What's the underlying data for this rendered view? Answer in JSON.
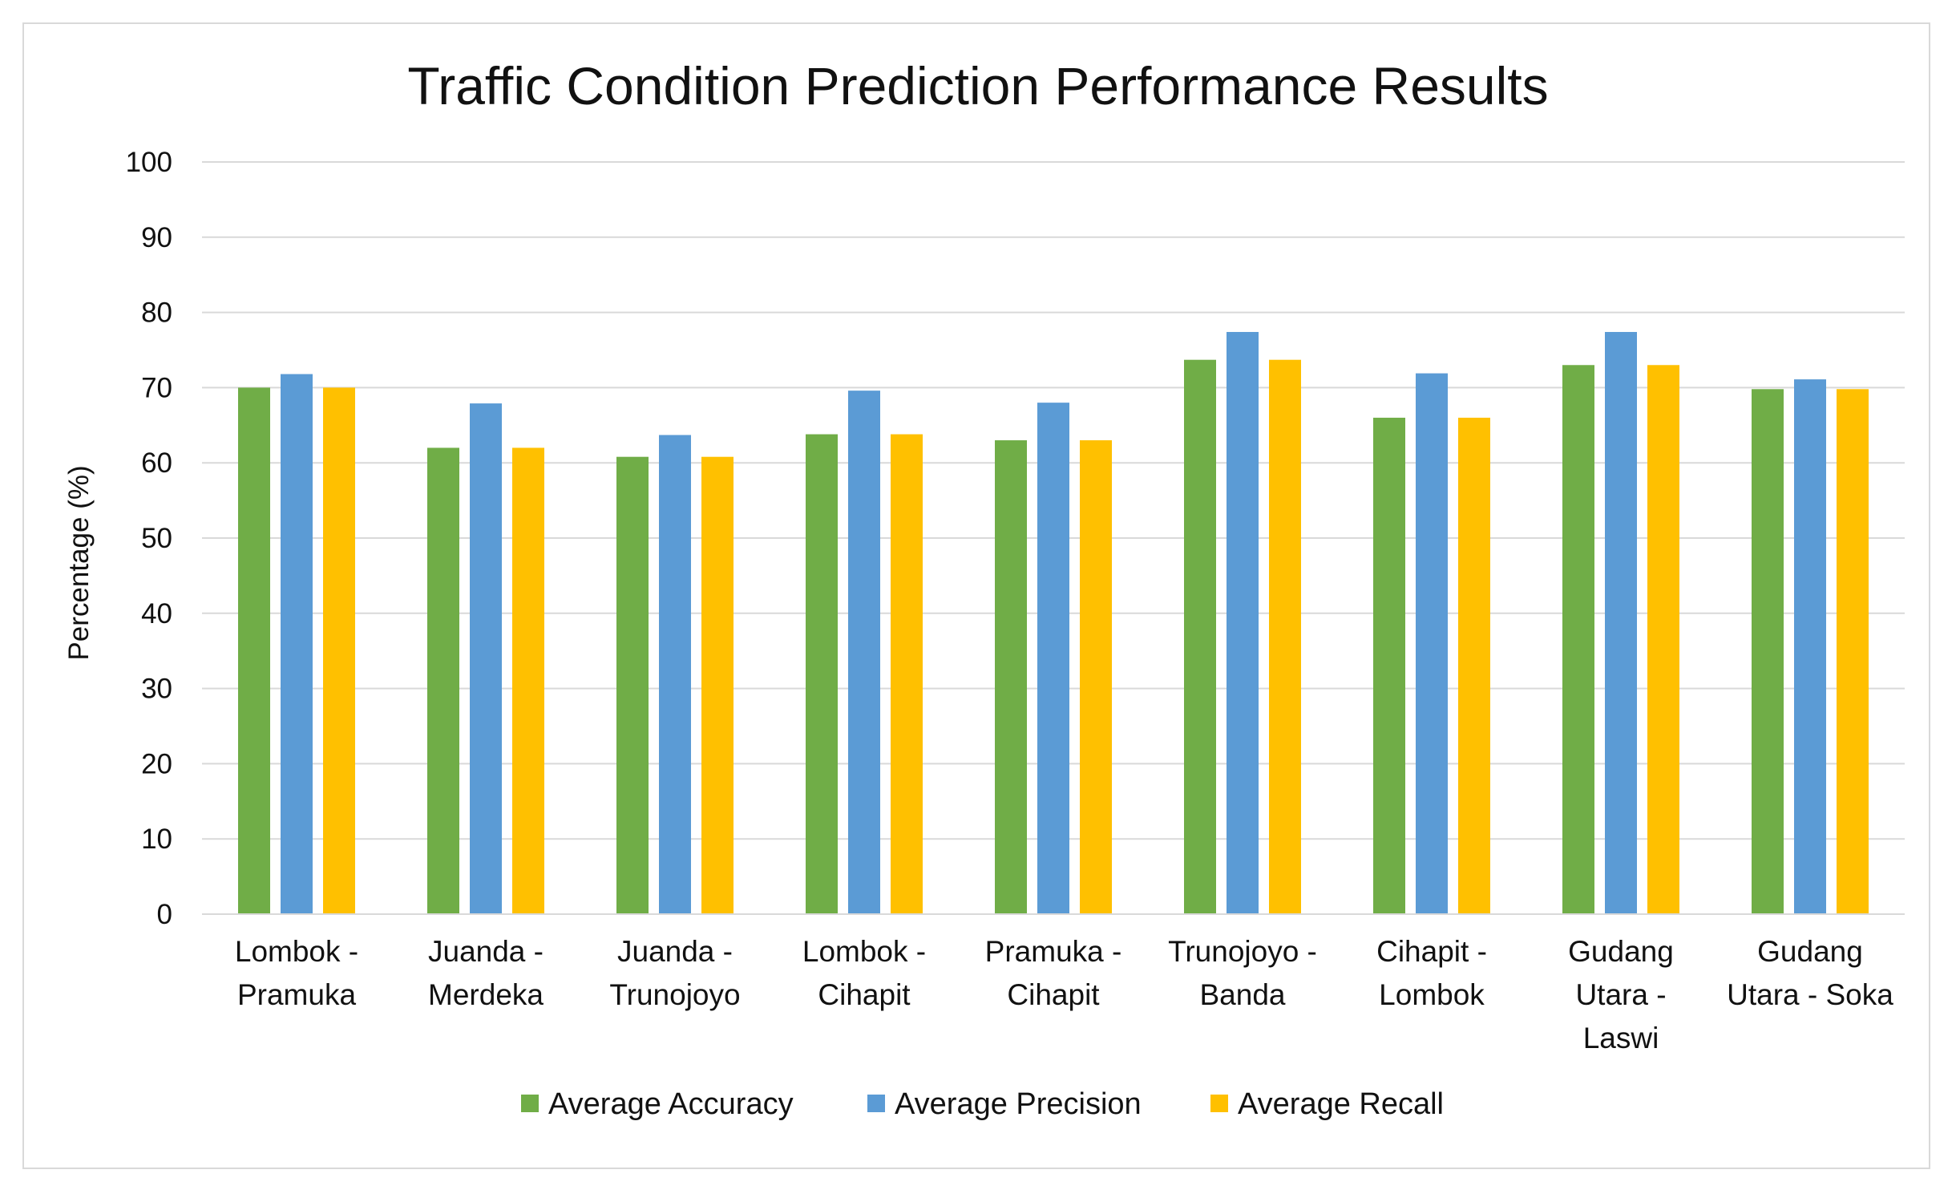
{
  "chart_data": {
    "type": "bar",
    "title": "Traffic Condition Prediction Performance Results",
    "xlabel": "",
    "ylabel": "Percentage (%)",
    "ylim": [
      0,
      100
    ],
    "yticks": [
      0,
      10,
      20,
      30,
      40,
      50,
      60,
      70,
      80,
      90,
      100
    ],
    "grid": true,
    "legend_position": "bottom",
    "categories": [
      [
        "Lombok -",
        "Pramuka"
      ],
      [
        "Juanda -",
        "Merdeka"
      ],
      [
        "Juanda -",
        "Trunojoyo"
      ],
      [
        "Lombok -",
        "Cihapit"
      ],
      [
        "Pramuka -",
        "Cihapit"
      ],
      [
        "Trunojoyo -",
        "Banda"
      ],
      [
        "Cihapit -",
        "Lombok"
      ],
      [
        "Gudang",
        "Utara -",
        "Laswi"
      ],
      [
        "Gudang",
        "Utara - Soka"
      ]
    ],
    "series": [
      {
        "name": "Average Accuracy",
        "color": "#70ad47",
        "values": [
          70,
          62,
          60.8,
          63.8,
          63,
          73.7,
          66,
          73,
          69.8
        ]
      },
      {
        "name": "Average Precision",
        "color": "#5b9bd5",
        "values": [
          71.8,
          67.9,
          63.7,
          69.6,
          68,
          77.4,
          71.9,
          77.4,
          71.1
        ]
      },
      {
        "name": "Average Recall",
        "color": "#ffc000",
        "values": [
          70,
          62,
          60.8,
          63.8,
          63,
          73.7,
          66,
          73,
          69.8
        ]
      }
    ]
  }
}
